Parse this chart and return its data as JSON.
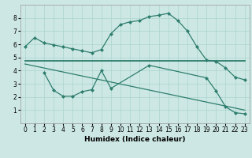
{
  "xlabel": "Humidex (Indice chaleur)",
  "bg_color": "#cde8e4",
  "grid_color": "#aad4cc",
  "line_color": "#2e7d6e",
  "xlim": [
    -0.5,
    23.5
  ],
  "ylim": [
    0,
    9
  ],
  "xticks": [
    0,
    1,
    2,
    3,
    4,
    5,
    6,
    7,
    8,
    9,
    10,
    11,
    12,
    13,
    14,
    15,
    16,
    17,
    18,
    19,
    20,
    21,
    22,
    23
  ],
  "yticks": [
    1,
    2,
    3,
    4,
    5,
    6,
    7,
    8
  ],
  "series1_x": [
    0,
    1,
    2,
    3,
    4,
    5,
    6,
    7,
    8,
    9,
    10,
    11,
    12,
    13,
    14,
    15,
    16,
    17,
    18,
    19,
    20,
    21,
    22,
    23
  ],
  "series1_y": [
    5.8,
    6.5,
    6.1,
    5.95,
    5.8,
    5.65,
    5.5,
    5.35,
    5.6,
    6.8,
    7.5,
    7.7,
    7.8,
    8.1,
    8.2,
    8.35,
    7.8,
    7.0,
    5.8,
    4.8,
    4.7,
    4.2,
    3.5,
    3.3
  ],
  "series2_x": [
    0,
    1,
    2,
    3,
    4,
    5,
    6,
    7,
    8,
    9,
    10,
    11,
    12,
    13,
    14,
    15,
    16,
    17,
    18,
    19,
    20,
    21,
    22,
    23
  ],
  "series2_y": [
    4.75,
    4.75,
    4.75,
    4.75,
    4.75,
    4.75,
    4.75,
    4.75,
    4.75,
    4.75,
    4.75,
    4.75,
    4.75,
    4.75,
    4.75,
    4.75,
    4.75,
    4.75,
    4.75,
    4.75,
    4.75,
    4.75,
    4.75,
    4.75
  ],
  "series3_x": [
    0,
    23
  ],
  "series3_y": [
    4.5,
    1.0
  ],
  "series4_x": [
    2,
    3,
    4,
    5,
    6,
    7,
    8,
    9,
    13,
    19,
    20,
    21,
    22,
    23
  ],
  "series4_y": [
    3.85,
    2.5,
    2.05,
    2.05,
    2.4,
    2.55,
    4.0,
    2.65,
    4.4,
    3.45,
    2.45,
    1.25,
    0.8,
    0.72
  ]
}
